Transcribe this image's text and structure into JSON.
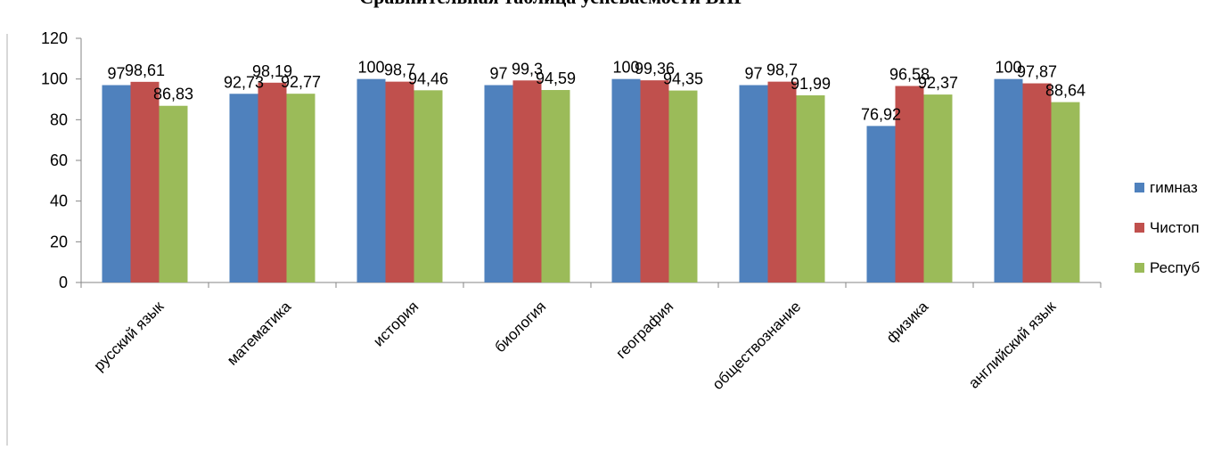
{
  "chart_data": {
    "type": "bar",
    "title": "Сравнительная таблица успеваемости ВПР",
    "categories": [
      "русский язык",
      "математика",
      "история",
      "биология",
      "география",
      "обществознание",
      "физика",
      "английский язык"
    ],
    "series": [
      {
        "name": "гимназ",
        "color": "#4F81BD",
        "values": [
          97,
          92.73,
          100,
          97,
          100,
          97,
          76.92,
          100
        ],
        "labels": [
          "97",
          "92,73",
          "100",
          "97",
          "100",
          "97",
          "76,92",
          "100"
        ]
      },
      {
        "name": "Чистоп",
        "color": "#C0504D",
        "values": [
          98.61,
          98.19,
          98.7,
          99.3,
          99.36,
          98.7,
          96.58,
          97.87
        ],
        "labels": [
          "98,61",
          "98,19",
          "98,7",
          "99,3",
          "99,36",
          "98,7",
          "96,58",
          "97,87"
        ]
      },
      {
        "name": "Респуб",
        "color": "#9BBB59",
        "values": [
          86.83,
          92.77,
          94.46,
          94.59,
          94.35,
          91.99,
          92.37,
          88.64
        ],
        "labels": [
          "86,83",
          "92,77",
          "94,46",
          "94,59",
          "94,35",
          "91,99",
          "92,37",
          "88,64"
        ]
      }
    ],
    "y_ticks": [
      "0",
      "20",
      "40",
      "60",
      "80",
      "100",
      "120"
    ],
    "ylim": [
      0,
      120
    ],
    "grid": false,
    "legend_position": "right"
  }
}
